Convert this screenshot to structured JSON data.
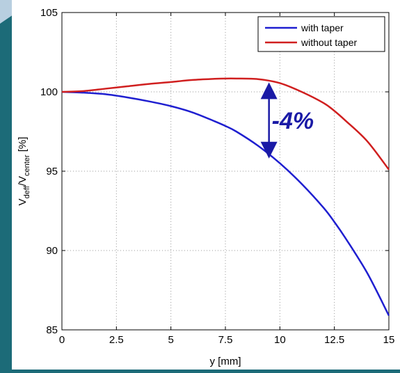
{
  "chart_data": {
    "type": "line",
    "title": "",
    "xlabel": "y [mm]",
    "ylabel": {
      "main": "V",
      "sub1": "deff",
      "sep": "/V",
      "sub2": "center",
      "unit": " [%]"
    },
    "xlim": [
      0,
      15
    ],
    "ylim": [
      85,
      105
    ],
    "xticks": [
      0,
      2.5,
      5,
      7.5,
      10,
      12.5,
      15
    ],
    "xtick_labels": [
      "0",
      "2.5",
      "5",
      "7.5",
      "10",
      "12.5",
      "15"
    ],
    "yticks": [
      85,
      90,
      95,
      100,
      105
    ],
    "ytick_labels": [
      "85",
      "90",
      "95",
      "100",
      "105"
    ],
    "grid": true,
    "legend_position": "top-right",
    "x": [
      0,
      1,
      2,
      3,
      4,
      5,
      6,
      7,
      7.5,
      8,
      9,
      10,
      11,
      12,
      12.5,
      13,
      14,
      15
    ],
    "series": [
      {
        "name": "with taper",
        "color": "#1f1fd0",
        "values": [
          100.0,
          99.95,
          99.85,
          99.65,
          99.4,
          99.1,
          98.7,
          98.15,
          97.85,
          97.5,
          96.6,
          95.5,
          94.2,
          92.7,
          91.8,
          90.8,
          88.6,
          85.9
        ]
      },
      {
        "name": "without taper",
        "color": "#d01f1f",
        "values": [
          100.0,
          100.05,
          100.2,
          100.35,
          100.5,
          100.62,
          100.75,
          100.82,
          100.84,
          100.84,
          100.8,
          100.55,
          100.0,
          99.3,
          98.8,
          98.2,
          96.9,
          95.1
        ]
      }
    ],
    "annotation": {
      "text": "-4%",
      "x": 9.5,
      "y_top": 100.6,
      "y_bottom": 95.8,
      "color": "#1a1aa6"
    }
  }
}
